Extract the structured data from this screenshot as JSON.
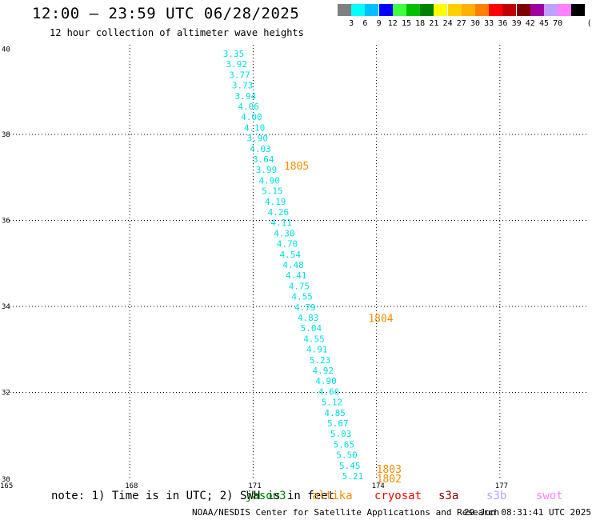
{
  "title": "12:00 – 23:59 UTC 06/28/2025",
  "subtitle": "12 hour collection of altimeter wave heights",
  "color_scale": {
    "unit": "(ft)",
    "ticks": [
      "3",
      "6",
      "9",
      "12",
      "15",
      "18",
      "21",
      "24",
      "27",
      "30",
      "33",
      "36",
      "39",
      "42",
      "45",
      "70"
    ],
    "colors": [
      "#808080",
      "#00ffff",
      "#00bfff",
      "#0000ff",
      "#40ff40",
      "#00c000",
      "#008000",
      "#ffff00",
      "#ffd000",
      "#ffb000",
      "#ff8000",
      "#ff0000",
      "#c00000",
      "#800000",
      "#a000a0",
      "#c0a0ff",
      "#ff80ff",
      "#000000"
    ]
  },
  "map": {
    "lat_labels": [
      "40",
      "38",
      "36",
      "34",
      "32",
      "30"
    ],
    "lon_labels": [
      "165",
      "168",
      "171",
      "174",
      "177"
    ],
    "lat_values": [
      40,
      38,
      36,
      34,
      32,
      30
    ],
    "lon_values": [
      165,
      168,
      171,
      174,
      177
    ],
    "swh_color": "#00e0e0",
    "swh_values": [
      "3.35",
      "3.92",
      "3.77",
      "3.73",
      "3.94",
      "4.06",
      "4.00",
      "4.10",
      "3.90",
      "4.03",
      "3.64",
      "3.99",
      "4.90",
      "5.15",
      "4.19",
      "4.26",
      "4.11",
      "4.30",
      "4.70",
      "4.54",
      "4.48",
      "4.41",
      "4.75",
      "4.55",
      "4.79",
      "4.83",
      "5.04",
      "4.55",
      "4.91",
      "5.23",
      "4.92",
      "4.90",
      "4.66",
      "5.12",
      "4.85",
      "5.67",
      "5.03",
      "5.65",
      "5.50",
      "5.45",
      "5.21"
    ],
    "pass_labels": [
      {
        "text": "1805",
        "lon": 171.75,
        "lat": 37.25
      },
      {
        "text": "1804",
        "lon": 173.8,
        "lat": 33.7
      },
      {
        "text": "1803",
        "lon": 174.0,
        "lat": 30.2
      },
      {
        "text": "1802",
        "lon": 174.0,
        "lat": 29.97
      }
    ],
    "pass_label_color": "#ff8c00"
  },
  "note": "note:  1) Time is in UTC; 2) SWH is in feet",
  "missions": [
    {
      "name": "jason3",
      "color": "#008000"
    },
    {
      "name": "altika",
      "color": "#ff8c00"
    },
    {
      "name": "cryosat",
      "color": "#ff0000"
    },
    {
      "name": "s3a",
      "color": "#800000"
    },
    {
      "name": "s3b",
      "color": "#c0a0ff"
    },
    {
      "name": "swot",
      "color": "#ff80ff"
    }
  ],
  "credit": "NOAA/NESDIS Center for Satellite Applications and Research",
  "timestamp": "29 Jun 08:31:41 UTC 2025"
}
